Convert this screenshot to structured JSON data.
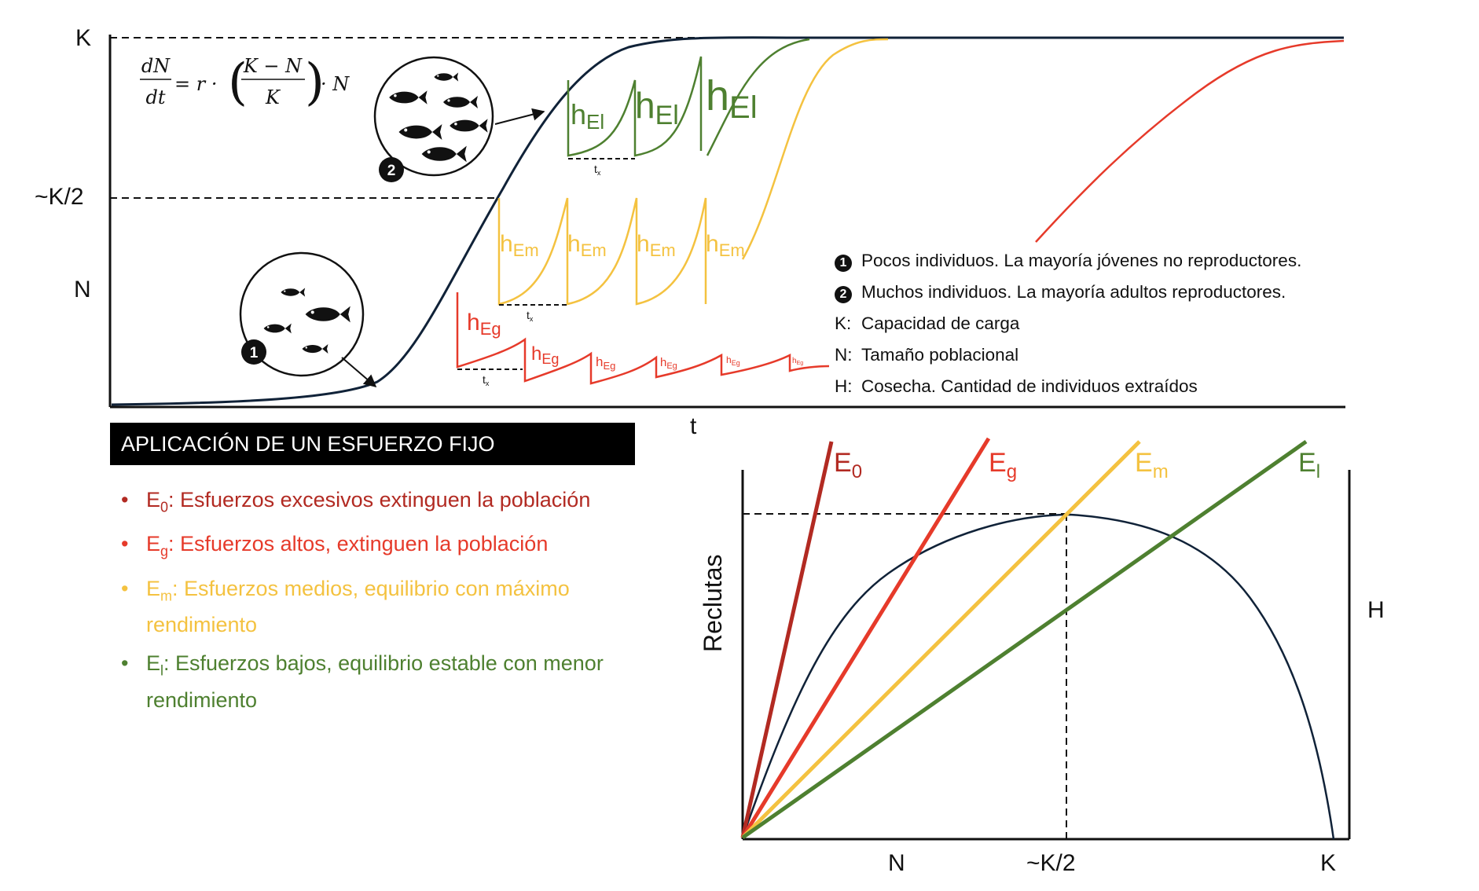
{
  "top": {
    "y_ticks": [
      "K",
      "~K/2",
      "N"
    ],
    "equation": {
      "lhs_num": "dN",
      "lhs_den": "dt",
      "rhs_a": "= r ·",
      "frac_num": "K − N",
      "frac_den": "K",
      "rhs_b": "· N"
    },
    "harvest_labels": {
      "E_l": "h",
      "E_l_sub": "El",
      "E_m": "h",
      "E_m_sub": "Em",
      "E_g": "h",
      "E_g_sub": "Eg"
    },
    "interval_label": "t",
    "interval_sub": "x",
    "x_label": "t",
    "badges": [
      "1",
      "2"
    ]
  },
  "legend": [
    {
      "key": "1",
      "kind": "badge",
      "text": "Pocos individuos. La mayoría jóvenes no reproductores."
    },
    {
      "key": "2",
      "kind": "badge",
      "text": "Muchos individuos. La mayoría adultos reproductores."
    },
    {
      "key": "K:",
      "kind": "text",
      "text": "Capacidad de carga"
    },
    {
      "key": "N:",
      "kind": "text",
      "text": "Tamaño poblacional"
    },
    {
      "key": "H:",
      "kind": "text",
      "text": "Cosecha. Cantidad de individuos extraídos"
    }
  ],
  "banner": "APLICACIÓN DE UN ESFUERZO FIJO",
  "bullets": [
    {
      "sym": "E",
      "sub": "0",
      "text": ":  Esfuerzos excesivos extinguen la población",
      "color": "#b22a22"
    },
    {
      "sym": "E",
      "sub": "g",
      "text": ":  Esfuerzos altos, extinguen la población",
      "color": "#e63a2a"
    },
    {
      "sym": "E",
      "sub": "m",
      "text": ":  Esfuerzos medios, equilibrio con máximo rendimiento",
      "color": "#f4c240"
    },
    {
      "sym": "E",
      "sub": "l",
      "text": ":  Esfuerzos bajos, equilibrio estable con menor rendimiento",
      "color": "#4e8030"
    }
  ],
  "bottom_chart": {
    "y_label": "Reclutas",
    "right_label": "H",
    "x_ticks": [
      "N",
      "~K/2",
      "K"
    ],
    "line_labels": [
      {
        "sym": "E",
        "sub": "0",
        "color": "#b22a22"
      },
      {
        "sym": "E",
        "sub": "g",
        "color": "#e63a2a"
      },
      {
        "sym": "E",
        "sub": "m",
        "color": "#f4c240"
      },
      {
        "sym": "E",
        "sub": "l",
        "color": "#4e8030"
      }
    ]
  },
  "colors": {
    "curve": "#102238",
    "E0": "#b22a22",
    "Eg": "#e63a2a",
    "Em": "#f4c240",
    "El": "#4e8030"
  },
  "icons": [
    "fish-icon",
    "number-badge-icon",
    "arrow-icon"
  ]
}
